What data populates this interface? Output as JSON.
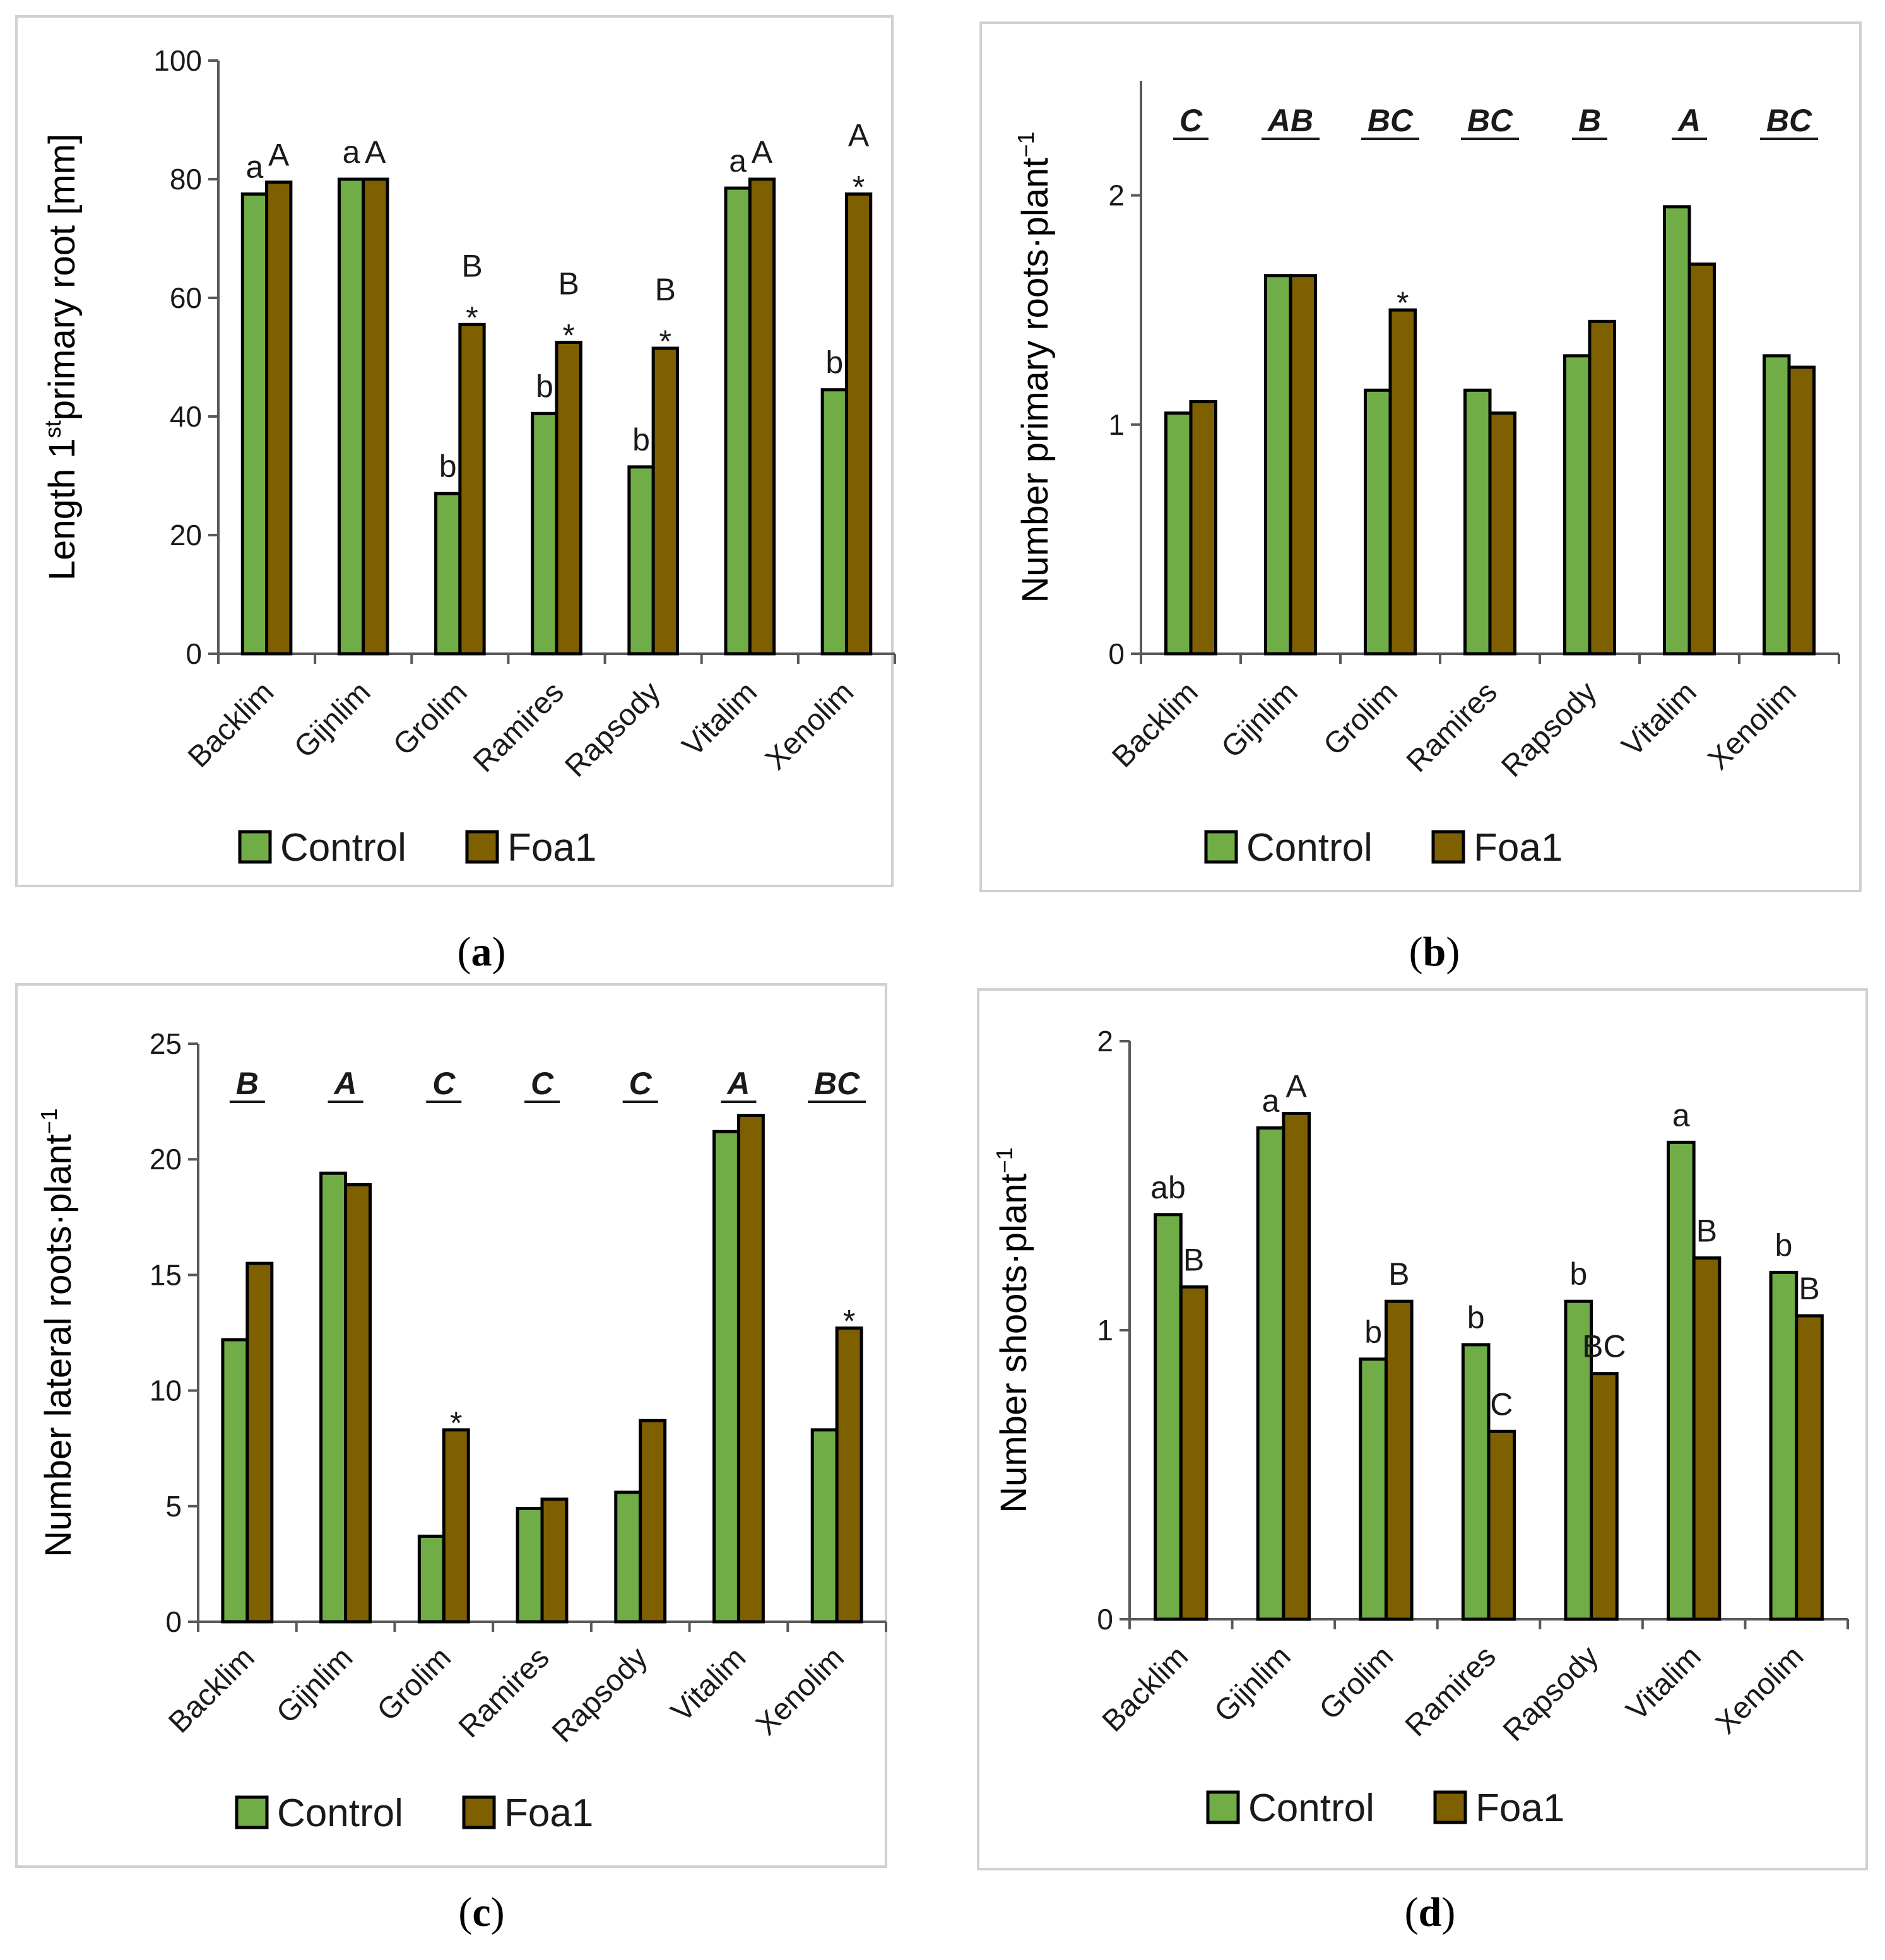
{
  "colors": {
    "control": "#70ad47",
    "foa1": "#7f6000"
  },
  "legend": {
    "control": "Control",
    "foa1": "Foa1"
  },
  "chart_data": [
    {
      "type": "bar",
      "panel_tag": "a",
      "ylabel": "Length 1",
      "ylabel_sup": "st",
      "ylabel_tail": "primary root [mm]",
      "ylim": [
        0,
        100
      ],
      "yticks": [
        "0",
        "20",
        "40",
        "60",
        "80",
        "100"
      ],
      "categories": [
        "Backlim",
        "Gijnlim",
        "Grolim",
        "Ramires",
        "Rapsody",
        "Vitalim",
        "Xenolim"
      ],
      "series": [
        {
          "name": "Control",
          "values": [
            77.5,
            80,
            27,
            40.5,
            31.5,
            78.5,
            44.5
          ]
        },
        {
          "name": "Foa1",
          "values": [
            79.5,
            80,
            55.5,
            52.5,
            51.5,
            80,
            77.5
          ]
        }
      ],
      "control_labels": [
        "a",
        "a",
        "b",
        "b",
        "b",
        "a",
        "b"
      ],
      "foa1_labels": [
        "A",
        "A",
        "B",
        "B",
        "B",
        "A",
        "A"
      ],
      "stars": [
        "",
        "",
        "*",
        "*",
        "*",
        "",
        "*"
      ],
      "group_letters": []
    },
    {
      "type": "bar",
      "panel_tag": "b",
      "ylabel": "Number primary roots",
      "ylabel_mid": "·",
      "ylabel_tail": "plant",
      "ylabel_sup": "−1",
      "ylim": [
        0,
        2.5
      ],
      "yticks": [
        "0",
        "1",
        "2"
      ],
      "ytick_values": [
        0,
        1,
        2
      ],
      "categories": [
        "Backlim",
        "Gijnlim",
        "Grolim",
        "Ramires",
        "Rapsody",
        "Vitalim",
        "Xenolim"
      ],
      "series": [
        {
          "name": "Control",
          "values": [
            1.05,
            1.65,
            1.15,
            1.15,
            1.3,
            1.95,
            1.3
          ]
        },
        {
          "name": "Foa1",
          "values": [
            1.1,
            1.65,
            1.5,
            1.05,
            1.45,
            1.7,
            1.25
          ]
        }
      ],
      "control_labels": [],
      "foa1_labels": [],
      "stars": [
        "",
        "",
        "*",
        "",
        "",
        "",
        ""
      ],
      "group_letters": [
        "C",
        "AB",
        "BC",
        "BC",
        "B",
        "A",
        "BC"
      ]
    },
    {
      "type": "bar",
      "panel_tag": "c",
      "ylabel": "Number lateral roots",
      "ylabel_mid": "·",
      "ylabel_tail": "plant",
      "ylabel_sup": "−1",
      "ylim": [
        0,
        25
      ],
      "yticks": [
        "0",
        "5",
        "10",
        "15",
        "20",
        "25"
      ],
      "categories": [
        "Backlim",
        "Gijnlim",
        "Grolim",
        "Ramires",
        "Rapsody",
        "Vitalim",
        "Xenolim"
      ],
      "series": [
        {
          "name": "Control",
          "values": [
            12.2,
            19.4,
            3.7,
            4.9,
            5.6,
            21.2,
            8.3
          ]
        },
        {
          "name": "Foa1",
          "values": [
            15.5,
            18.9,
            8.3,
            5.3,
            8.7,
            21.9,
            12.7
          ]
        }
      ],
      "control_labels": [],
      "foa1_labels": [],
      "stars": [
        "",
        "",
        "*",
        "",
        "",
        "",
        "*"
      ],
      "group_letters": [
        "B",
        "A",
        "C",
        "C",
        "C",
        "A",
        "BC"
      ]
    },
    {
      "type": "bar",
      "panel_tag": "d",
      "ylabel": "Number shoots",
      "ylabel_mid": "·",
      "ylabel_tail": "plant",
      "ylabel_sup": "−1",
      "ylim": [
        0,
        2
      ],
      "yticks": [
        "0",
        "1",
        "2"
      ],
      "categories": [
        "Backlim",
        "Gijnlim",
        "Grolim",
        "Ramires",
        "Rapsody",
        "Vitalim",
        "Xenolim"
      ],
      "series": [
        {
          "name": "Control",
          "values": [
            1.4,
            1.7,
            0.9,
            0.95,
            1.1,
            1.65,
            1.2
          ]
        },
        {
          "name": "Foa1",
          "values": [
            1.15,
            1.75,
            1.1,
            0.65,
            0.85,
            1.25,
            1.05
          ]
        }
      ],
      "control_labels": [
        "ab",
        "a",
        "b",
        "b",
        "b",
        "a",
        "b"
      ],
      "foa1_labels": [
        "B",
        "A",
        "B",
        "C",
        "BC",
        "B",
        "B"
      ],
      "stars": [
        "",
        "",
        "",
        "",
        "",
        "",
        ""
      ],
      "group_letters": []
    }
  ]
}
